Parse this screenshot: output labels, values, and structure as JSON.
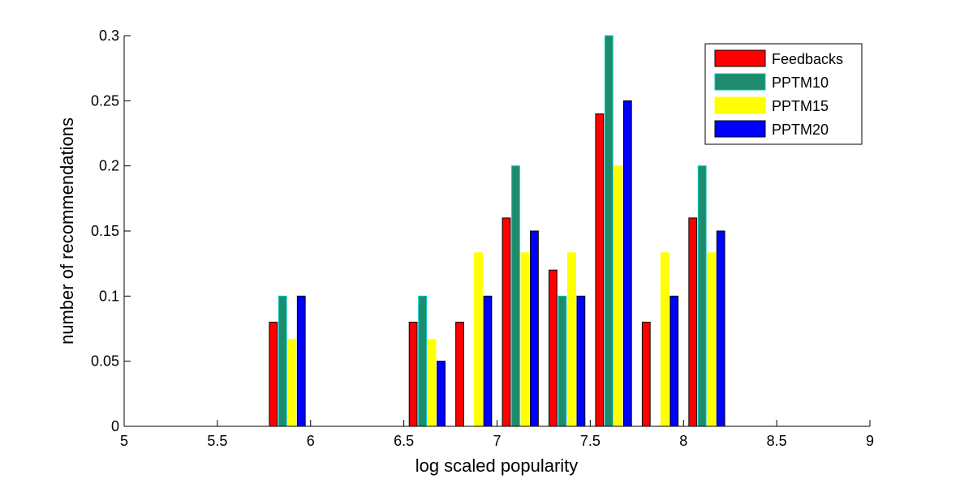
{
  "chart_data": {
    "type": "bar",
    "title": "",
    "xlabel": "log scaled popularity",
    "ylabel": "number of recommendations",
    "xlim": [
      5,
      9
    ],
    "ylim": [
      0,
      0.3
    ],
    "xticks": [
      "5",
      "5.5",
      "6",
      "6.5",
      "7",
      "7.5",
      "8",
      "8.5",
      "9"
    ],
    "yticks": [
      "0",
      "0.05",
      "0.1",
      "0.15",
      "0.2",
      "0.25",
      "0.3"
    ],
    "grid": false,
    "legend_position": "top-right",
    "x": [
      5.125,
      5.375,
      5.625,
      5.875,
      6.125,
      6.375,
      6.625,
      6.875,
      7.125,
      7.375,
      7.625,
      7.875,
      8.125,
      8.375,
      8.625,
      8.875
    ],
    "series": [
      {
        "name": "Feedbacks",
        "color": "#ff0000",
        "edge": "#000000",
        "values": [
          0,
          0,
          0,
          0.08,
          0,
          0,
          0.08,
          0.08,
          0.16,
          0.12,
          0.24,
          0.08,
          0.16,
          0,
          0,
          0
        ]
      },
      {
        "name": "PPTM10",
        "color": "#1e8b6a",
        "edge": "#00c8c8",
        "values": [
          0,
          0,
          0,
          0.1,
          0,
          0,
          0.1,
          0,
          0.2,
          0.1,
          0.3,
          0,
          0.2,
          0,
          0,
          0
        ]
      },
      {
        "name": "PPTM15",
        "color": "#ffff00",
        "edge": "#ffff00",
        "values": [
          0,
          0,
          0,
          0.0667,
          0,
          0,
          0.0667,
          0.1333,
          0.1333,
          0.1333,
          0.2,
          0.1333,
          0.1333,
          0,
          0,
          0
        ]
      },
      {
        "name": "PPTM20",
        "color": "#0000ff",
        "edge": "#000000",
        "values": [
          0,
          0,
          0,
          0.1,
          0,
          0,
          0.05,
          0.1,
          0.15,
          0.1,
          0.25,
          0.1,
          0.15,
          0,
          0,
          0
        ]
      }
    ]
  }
}
